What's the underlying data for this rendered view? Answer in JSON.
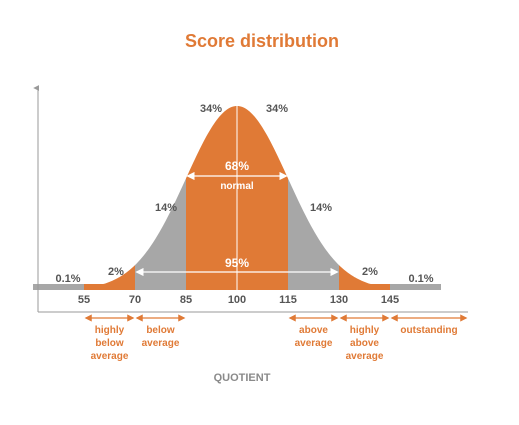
{
  "chart_data": {
    "type": "area",
    "title": "Score distribution",
    "xlabel": "QUOTIENT",
    "ylabel": "",
    "x_ticks": [
      55,
      70,
      85,
      100,
      115,
      130,
      145
    ],
    "xlim": [
      40,
      160
    ],
    "mean": 100,
    "sd": 15,
    "segments": [
      {
        "from": 40,
        "to": 55,
        "percent": "0.1%",
        "color": "#a7a7a7"
      },
      {
        "from": 55,
        "to": 70,
        "percent": "2%",
        "color": "#e07a36"
      },
      {
        "from": 70,
        "to": 85,
        "percent": "14%",
        "color": "#a7a7a7"
      },
      {
        "from": 85,
        "to": 100,
        "percent": "34%",
        "color": "#e07a36"
      },
      {
        "from": 100,
        "to": 115,
        "percent": "34%",
        "color": "#e07a36"
      },
      {
        "from": 115,
        "to": 130,
        "percent": "14%",
        "color": "#a7a7a7"
      },
      {
        "from": 130,
        "to": 145,
        "percent": "2%",
        "color": "#e07a36"
      },
      {
        "from": 145,
        "to": 160,
        "percent": "0.1%",
        "color": "#a7a7a7"
      }
    ],
    "annotations": [
      {
        "percent": "68%",
        "label": "normal",
        "from": 85,
        "to": 115
      },
      {
        "percent": "95%",
        "from": 70,
        "to": 130
      }
    ],
    "categories": [
      {
        "lines": [
          "highly",
          "below",
          "average"
        ],
        "from": 55,
        "to": 70
      },
      {
        "lines": [
          "below",
          "average"
        ],
        "from": 70,
        "to": 85
      },
      {
        "lines": [
          "above",
          "average"
        ],
        "from": 115,
        "to": 130
      },
      {
        "lines": [
          "highly",
          "above",
          "average"
        ],
        "from": 130,
        "to": 145
      },
      {
        "lines": [
          "outstanding"
        ],
        "from": 145,
        "to": 160
      }
    ],
    "colors": {
      "accent": "#e07a36",
      "gray": "#a7a7a7",
      "axis": "#9a9a9a",
      "text": "#555555"
    }
  }
}
